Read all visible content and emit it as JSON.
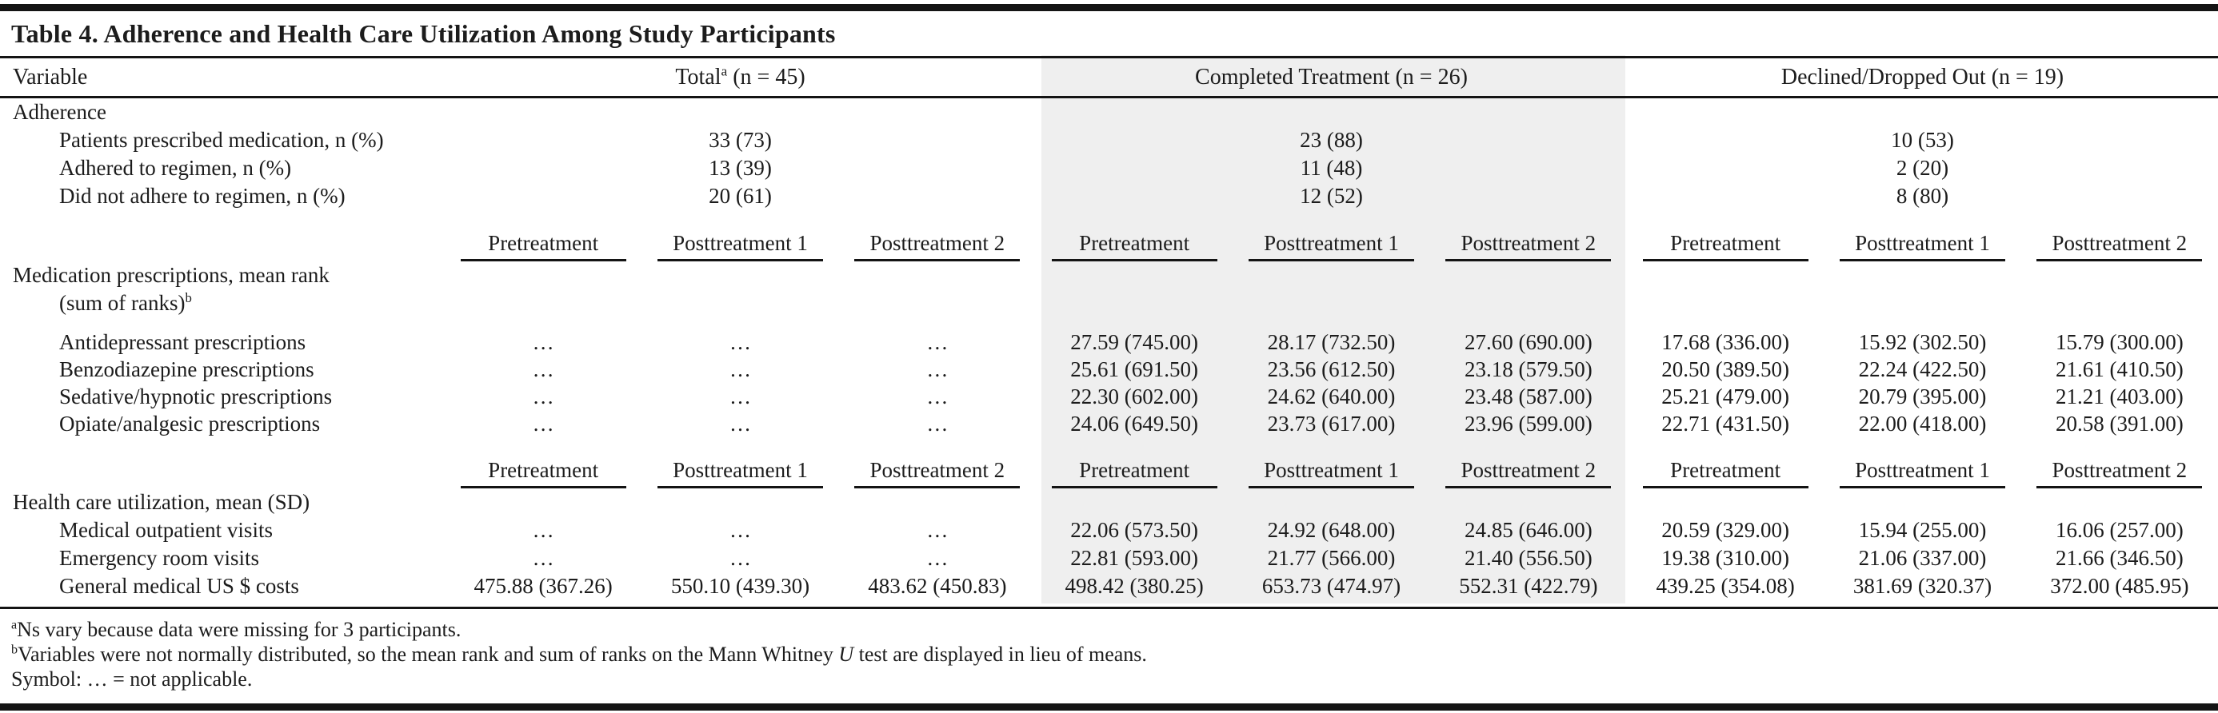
{
  "colors": {
    "highlight": "#efefef",
    "rule": "#141414",
    "text": "#1c1c1c"
  },
  "table": {
    "title": "Table 4. Adherence and Health Care Utilization Among Study Participants",
    "header": {
      "variable": "Variable",
      "groups": [
        {
          "pre": "Total",
          "sup": "a",
          "post": " (n = 45)"
        },
        {
          "pre": "Completed Treatment",
          "sup": "",
          "post": " (n = 26)"
        },
        {
          "pre": "Declined/Dropped Out",
          "sup": "",
          "post": " (n = 19)"
        }
      ]
    },
    "subcolumns": [
      "Pretreatment",
      "Posttreatment 1",
      "Posttreatment 2"
    ],
    "rows": [
      {
        "type": "section",
        "label": "Adherence"
      },
      {
        "type": "group3",
        "label": "Patients prescribed medication, n (%)",
        "values": [
          "33 (73)",
          "23 (88)",
          "10 (53)"
        ]
      },
      {
        "type": "group3",
        "label": "Adhered to regimen, n (%)",
        "values": [
          "13 (39)",
          "11 (48)",
          "2 (20)"
        ]
      },
      {
        "type": "group3",
        "label": "Did not adhere to regimen, n (%)",
        "values": [
          "20 (61)",
          "12 (52)",
          "8 (80)"
        ]
      },
      {
        "type": "subheader"
      },
      {
        "type": "section2",
        "label": "Medication prescriptions, mean rank",
        "label2": "(sum of ranks)",
        "sup": "b"
      },
      {
        "type": "data9",
        "label": "Antidepressant prescriptions",
        "values": [
          "…",
          "…",
          "…",
          "27.59 (745.00)",
          "28.17 (732.50)",
          "27.60 (690.00)",
          "17.68 (336.00)",
          "15.92 (302.50)",
          "15.79 (300.00)"
        ]
      },
      {
        "type": "data9",
        "label": "Benzodiazepine prescriptions",
        "values": [
          "…",
          "…",
          "…",
          "25.61 (691.50)",
          "23.56 (612.50)",
          "23.18 (579.50)",
          "20.50 (389.50)",
          "22.24 (422.50)",
          "21.61 (410.50)"
        ]
      },
      {
        "type": "data9",
        "label": "Sedative/hypnotic prescriptions",
        "values": [
          "…",
          "…",
          "…",
          "22.30 (602.00)",
          "24.62 (640.00)",
          "23.48 (587.00)",
          "25.21 (479.00)",
          "20.79 (395.00)",
          "21.21 (403.00)"
        ]
      },
      {
        "type": "data9",
        "label": "Opiate/analgesic prescriptions",
        "values": [
          "…",
          "…",
          "…",
          "24.06 (649.50)",
          "23.73 (617.00)",
          "23.96 (599.00)",
          "22.71 (431.50)",
          "22.00 (418.00)",
          "20.58 (391.00)"
        ]
      },
      {
        "type": "subheader"
      },
      {
        "type": "section",
        "label": "Health care utilization, mean (SD)"
      },
      {
        "type": "data9",
        "hc": true,
        "label": "Medical outpatient visits",
        "values": [
          "…",
          "…",
          "…",
          "22.06 (573.50)",
          "24.92 (648.00)",
          "24.85 (646.00)",
          "20.59 (329.00)",
          "15.94 (255.00)",
          "16.06 (257.00)"
        ]
      },
      {
        "type": "data9",
        "hc": true,
        "label": "Emergency room visits",
        "values": [
          "…",
          "…",
          "…",
          "22.81 (593.00)",
          "21.77 (566.00)",
          "21.40 (556.50)",
          "19.38 (310.00)",
          "21.06 (337.00)",
          "21.66 (346.50)"
        ]
      },
      {
        "type": "data9",
        "hc": true,
        "label": "General medical US $ costs",
        "values": [
          "475.88 (367.26)",
          "550.10 (439.30)",
          "483.62 (450.83)",
          "498.42 (380.25)",
          "653.73 (474.97)",
          "552.31 (422.79)",
          "439.25 (354.08)",
          "381.69 (320.37)",
          "372.00 (485.95)"
        ]
      }
    ]
  },
  "footnotes": [
    {
      "sup": "a",
      "text": "Ns vary because data were missing for 3 participants.",
      "italic": "",
      "text2": ""
    },
    {
      "sup": "b",
      "text": "Variables were not normally distributed, so the mean rank and sum of ranks on the Mann Whitney ",
      "italic": "U",
      "text2": " test are displayed in lieu of means."
    },
    {
      "sup": "",
      "text": "Symbol: … = not applicable.",
      "italic": "",
      "text2": ""
    }
  ]
}
